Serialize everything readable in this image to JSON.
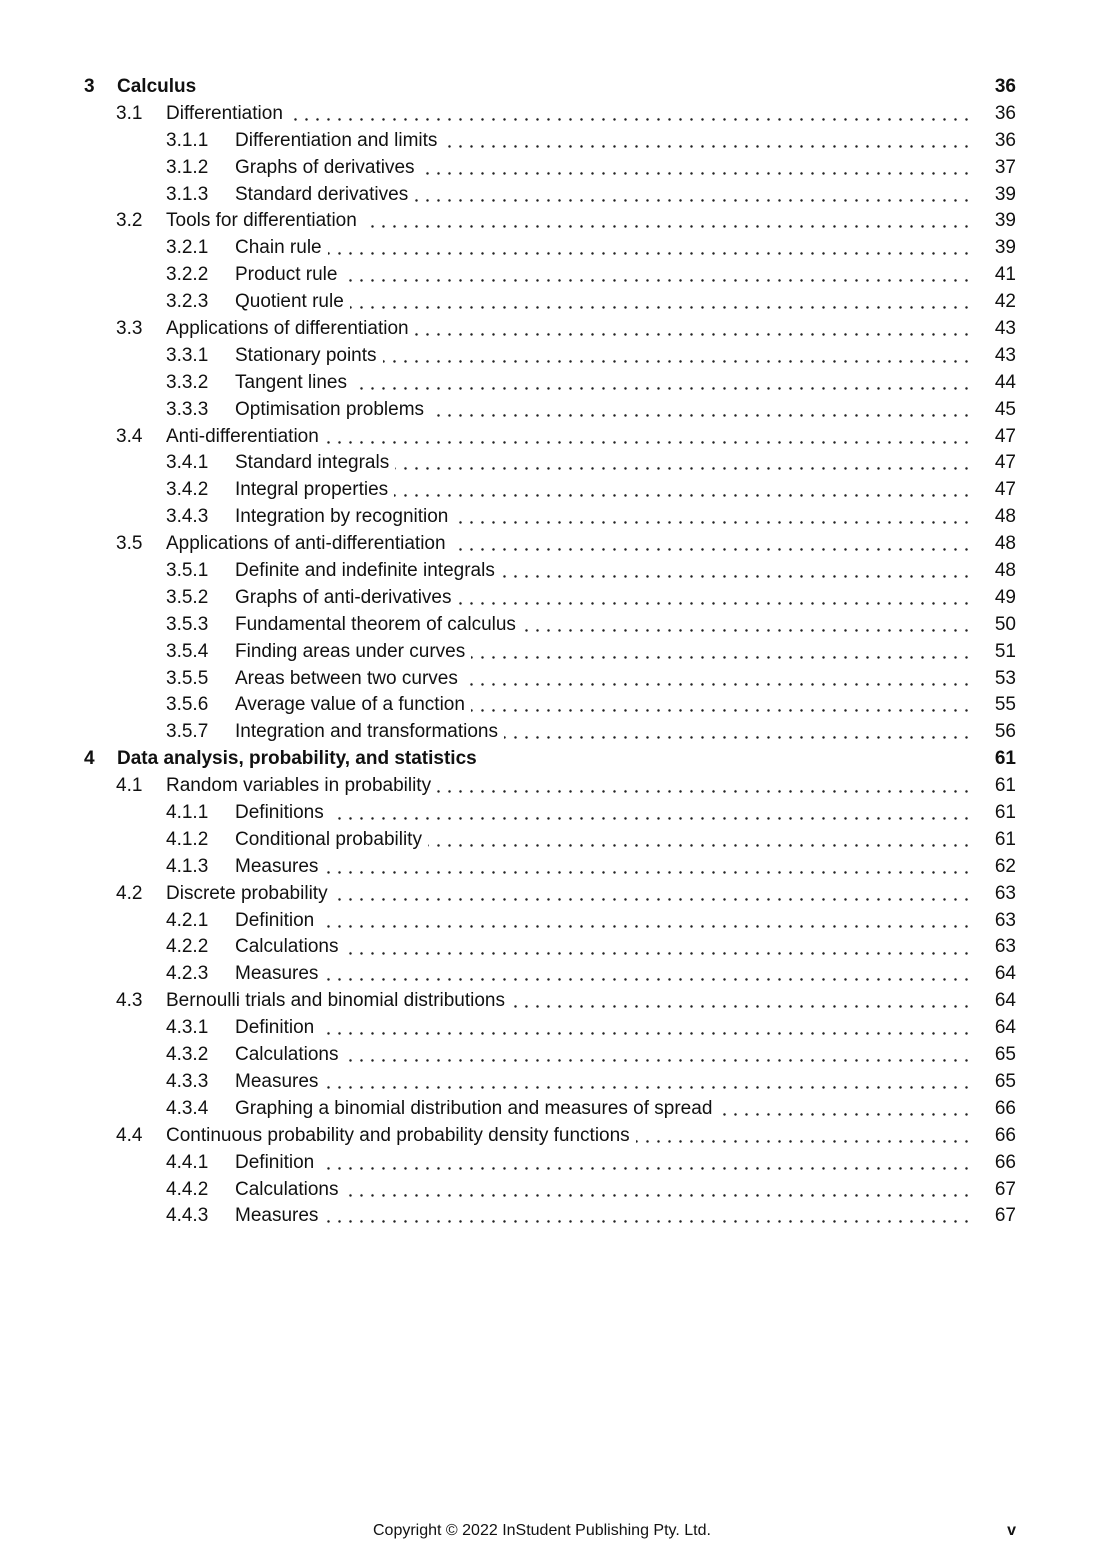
{
  "toc": [
    {
      "level": 0,
      "num": "3",
      "title": "Calculus",
      "page": "36"
    },
    {
      "level": 1,
      "num": "3.1",
      "title": "Differentiation",
      "page": "36"
    },
    {
      "level": 2,
      "num": "3.1.1",
      "title": "Differentiation and limits",
      "page": "36"
    },
    {
      "level": 2,
      "num": "3.1.2",
      "title": "Graphs of derivatives",
      "page": "37"
    },
    {
      "level": 2,
      "num": "3.1.3",
      "title": "Standard derivatives",
      "page": "39"
    },
    {
      "level": 1,
      "num": "3.2",
      "title": "Tools for differentiation",
      "page": "39"
    },
    {
      "level": 2,
      "num": "3.2.1",
      "title": "Chain rule",
      "page": "39"
    },
    {
      "level": 2,
      "num": "3.2.2",
      "title": "Product rule",
      "page": "41"
    },
    {
      "level": 2,
      "num": "3.2.3",
      "title": "Quotient rule",
      "page": "42"
    },
    {
      "level": 1,
      "num": "3.3",
      "title": "Applications of differentiation",
      "page": "43"
    },
    {
      "level": 2,
      "num": "3.3.1",
      "title": "Stationary points",
      "page": "43"
    },
    {
      "level": 2,
      "num": "3.3.2",
      "title": "Tangent lines",
      "page": "44"
    },
    {
      "level": 2,
      "num": "3.3.3",
      "title": "Optimisation problems",
      "page": "45"
    },
    {
      "level": 1,
      "num": "3.4",
      "title": "Anti-differentiation",
      "page": "47"
    },
    {
      "level": 2,
      "num": "3.4.1",
      "title": "Standard integrals",
      "page": "47"
    },
    {
      "level": 2,
      "num": "3.4.2",
      "title": "Integral properties",
      "page": "47"
    },
    {
      "level": 2,
      "num": "3.4.3",
      "title": "Integration by recognition",
      "page": "48"
    },
    {
      "level": 1,
      "num": "3.5",
      "title": "Applications of anti-differentiation",
      "page": "48"
    },
    {
      "level": 2,
      "num": "3.5.1",
      "title": "Definite and indefinite integrals",
      "page": "48"
    },
    {
      "level": 2,
      "num": "3.5.2",
      "title": "Graphs of anti-derivatives",
      "page": "49"
    },
    {
      "level": 2,
      "num": "3.5.3",
      "title": "Fundamental theorem of calculus",
      "page": "50"
    },
    {
      "level": 2,
      "num": "3.5.4",
      "title": "Finding areas under curves",
      "page": "51"
    },
    {
      "level": 2,
      "num": "3.5.5",
      "title": "Areas between two curves",
      "page": "53"
    },
    {
      "level": 2,
      "num": "3.5.6",
      "title": "Average value of a function",
      "page": "55"
    },
    {
      "level": 2,
      "num": "3.5.7",
      "title": "Integration and transformations",
      "page": "56"
    },
    {
      "level": 0,
      "num": "4",
      "title": "Data analysis, probability, and statistics",
      "page": "61"
    },
    {
      "level": 1,
      "num": "4.1",
      "title": "Random variables in probability",
      "page": "61"
    },
    {
      "level": 2,
      "num": "4.1.1",
      "title": "Definitions",
      "page": "61"
    },
    {
      "level": 2,
      "num": "4.1.2",
      "title": "Conditional probability",
      "page": "61"
    },
    {
      "level": 2,
      "num": "4.1.3",
      "title": "Measures",
      "page": "62"
    },
    {
      "level": 1,
      "num": "4.2",
      "title": "Discrete probability",
      "page": "63"
    },
    {
      "level": 2,
      "num": "4.2.1",
      "title": "Definition",
      "page": "63"
    },
    {
      "level": 2,
      "num": "4.2.2",
      "title": "Calculations",
      "page": "63"
    },
    {
      "level": 2,
      "num": "4.2.3",
      "title": "Measures",
      "page": "64"
    },
    {
      "level": 1,
      "num": "4.3",
      "title": "Bernoulli trials and binomial distributions",
      "page": "64"
    },
    {
      "level": 2,
      "num": "4.3.1",
      "title": "Definition",
      "page": "64"
    },
    {
      "level": 2,
      "num": "4.3.2",
      "title": "Calculations",
      "page": "65"
    },
    {
      "level": 2,
      "num": "4.3.3",
      "title": "Measures",
      "page": "65"
    },
    {
      "level": 2,
      "num": "4.3.4",
      "title": "Graphing a binomial distribution and measures of spread",
      "page": "66"
    },
    {
      "level": 1,
      "num": "4.4",
      "title": "Continuous probability and probability density functions",
      "page": "66"
    },
    {
      "level": 2,
      "num": "4.4.1",
      "title": "Definition",
      "page": "66"
    },
    {
      "level": 2,
      "num": "4.4.2",
      "title": "Calculations",
      "page": "67"
    },
    {
      "level": 2,
      "num": "4.4.3",
      "title": "Measures",
      "page": "67"
    }
  ],
  "footer": {
    "copyright": "Copyright © 2022 InStudent Publishing Pty. Ltd.",
    "page_number": "v"
  }
}
